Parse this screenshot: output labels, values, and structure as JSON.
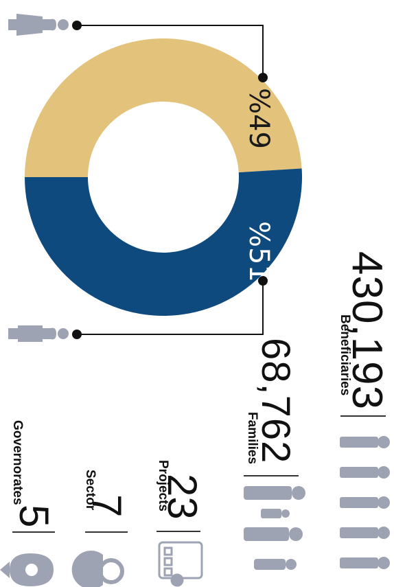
{
  "chart_data": {
    "type": "pie",
    "variant": "donut",
    "slices": [
      {
        "value": 49,
        "label": "%49",
        "color": "#E3C37C"
      },
      {
        "value": 51,
        "label": "%51",
        "color": "#0E4A7E"
      }
    ]
  },
  "stats": {
    "beneficiaries": {
      "value": "430,193",
      "label": "Beneficiaries"
    },
    "families": {
      "value": "68,762",
      "label": "Families"
    },
    "projects": {
      "value": "23",
      "label": "Projects"
    },
    "sector": {
      "value": "7",
      "label": "Sector"
    },
    "governorates": {
      "value": "5",
      "label": "Governorates"
    }
  },
  "colors": {
    "icon": "#9EA3B3",
    "connector": "#111111"
  },
  "icons": [
    "female-person-icon",
    "male-person-icon",
    "people-group-icon",
    "family-icon",
    "clipboard-gear-icon",
    "pie-gear-icon",
    "location-pin-icon"
  ]
}
